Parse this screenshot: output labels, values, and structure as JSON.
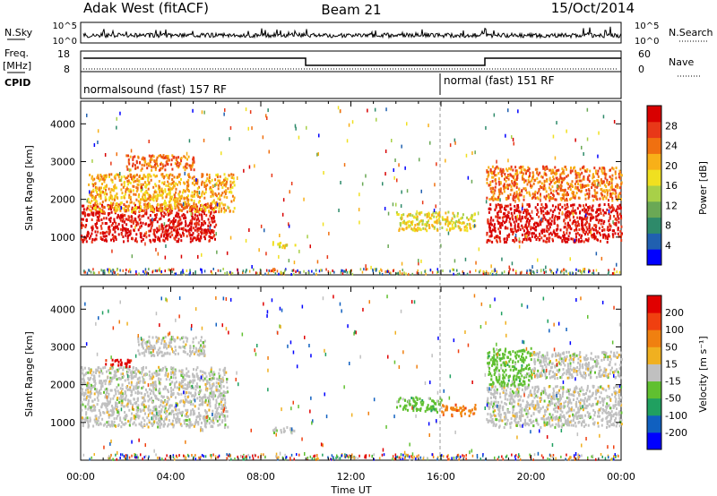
{
  "header": {
    "station": "Adak West (fitACF)",
    "beam": "Beam 21",
    "date": "15/Oct/2014"
  },
  "top_panels": {
    "nsky_label": "N.Sky",
    "nsky_ticks": [
      "10^5",
      "10^0"
    ],
    "nsearch_label": "N.Search",
    "nsearch_ticks": [
      "10^5",
      "10^0"
    ],
    "freq_label": "Freq.",
    "freq_unit": "[MHz]",
    "freq_ticks": [
      "18",
      "8"
    ],
    "nave_label": "Nave",
    "nave_ticks": [
      "60",
      "0"
    ],
    "cpid_label": "CPID",
    "cpid_segments": [
      {
        "label": "normalsound (fast) 157 RF",
        "start_hr": 0,
        "end_hr": 16
      },
      {
        "label": "normal (fast) 151 RF",
        "start_hr": 16,
        "end_hr": 24
      }
    ]
  },
  "colors": {
    "power_scale": [
      "#0000ff",
      "#2060b0",
      "#2e8a6a",
      "#6aa855",
      "#a8d048",
      "#f0e020",
      "#f8b018",
      "#f07010",
      "#e83818",
      "#d80000"
    ],
    "velocity_scale": [
      "#0000ff",
      "#1060c0",
      "#20a060",
      "#60c030",
      "#c0c0c0",
      "#f0b020",
      "#f08010",
      "#f04010",
      "#e00000"
    ]
  },
  "chart_data": [
    {
      "type": "heatmap",
      "panel": "power",
      "ylabel": "Slant Range [km]",
      "colorbar_label": "Power [dB]",
      "colorbar_ticks": [
        "28",
        "24",
        "20",
        "16",
        "12",
        "8",
        "4"
      ],
      "ylim": [
        0,
        4600
      ],
      "yticks": [
        "4000",
        "3000",
        "2000",
        "1000"
      ],
      "xlim_hr": [
        0,
        24
      ],
      "regions": [
        {
          "t0": 0.0,
          "t1": 6.0,
          "r0": 900,
          "r1": 1900,
          "level": 9
        },
        {
          "t0": 0.3,
          "t1": 6.8,
          "r0": 1700,
          "r1": 2700,
          "level": 6
        },
        {
          "t0": 2.0,
          "t1": 5.0,
          "r0": 2800,
          "r1": 3200,
          "level": 7
        },
        {
          "t0": 8.5,
          "t1": 9.5,
          "r0": 750,
          "r1": 900,
          "level": 5
        },
        {
          "t0": 14.0,
          "t1": 17.5,
          "r0": 1200,
          "r1": 1700,
          "level": 5
        },
        {
          "t0": 18.0,
          "t1": 24.0,
          "r0": 900,
          "r1": 1900,
          "level": 9
        },
        {
          "t0": 18.0,
          "t1": 24.0,
          "r0": 2000,
          "r1": 2900,
          "level": 7
        }
      ]
    },
    {
      "type": "heatmap",
      "panel": "velocity",
      "ylabel": "Slant Range [km]",
      "colorbar_label": "Velocity [m s⁻¹]",
      "colorbar_ticks": [
        "200",
        "100",
        "50",
        "15",
        "-15",
        "-50",
        "-100",
        "-200"
      ],
      "ylim": [
        0,
        4600
      ],
      "yticks": [
        "4000",
        "3000",
        "2000",
        "1000"
      ],
      "xlim_hr": [
        0,
        24
      ],
      "xticks": [
        "00:00",
        "04:00",
        "08:00",
        "12:00",
        "16:00",
        "20:00",
        "00:00"
      ],
      "xlabel": "Time UT",
      "regions": [
        {
          "t0": 0.0,
          "t1": 6.5,
          "r0": 900,
          "r1": 2500,
          "level": 4
        },
        {
          "t0": 2.5,
          "t1": 5.5,
          "r0": 2800,
          "r1": 3300,
          "level": 4
        },
        {
          "t0": 1.0,
          "t1": 2.2,
          "r0": 2500,
          "r1": 2700,
          "level": 8
        },
        {
          "t0": 8.5,
          "t1": 9.5,
          "r0": 750,
          "r1": 900,
          "level": 4
        },
        {
          "t0": 14.0,
          "t1": 16.0,
          "r0": 1300,
          "r1": 1700,
          "level": 3
        },
        {
          "t0": 16.0,
          "t1": 17.5,
          "r0": 1200,
          "r1": 1500,
          "level": 6
        },
        {
          "t0": 18.0,
          "t1": 24.0,
          "r0": 900,
          "r1": 2000,
          "level": 4
        },
        {
          "t0": 18.0,
          "t1": 20.0,
          "r0": 2000,
          "r1": 3000,
          "level": 3
        },
        {
          "t0": 20.0,
          "t1": 24.0,
          "r0": 2200,
          "r1": 2900,
          "level": 4
        }
      ]
    }
  ]
}
